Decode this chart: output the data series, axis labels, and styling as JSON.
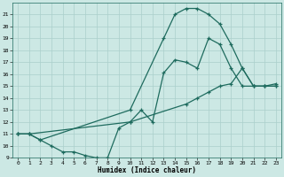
{
  "xlabel": "Humidex (Indice chaleur)",
  "bg_color": "#cce8e4",
  "line_color": "#1e6b5e",
  "grid_color": "#aacfcb",
  "xlim": [
    -0.5,
    23.5
  ],
  "ylim": [
    9,
    22
  ],
  "xticks": [
    0,
    1,
    2,
    3,
    4,
    5,
    6,
    7,
    8,
    9,
    10,
    11,
    12,
    13,
    14,
    15,
    16,
    17,
    18,
    19,
    20,
    21,
    22,
    23
  ],
  "yticks": [
    9,
    10,
    11,
    12,
    13,
    14,
    15,
    16,
    17,
    18,
    19,
    20,
    21
  ],
  "line1_x": [
    0,
    1,
    2,
    3,
    4,
    5,
    6,
    7,
    8,
    9,
    10,
    11,
    12,
    13,
    14,
    15,
    16,
    17,
    18,
    19,
    20,
    21,
    22,
    23
  ],
  "line1_y": [
    11,
    11,
    10.5,
    10,
    9.5,
    9.5,
    9.2,
    9,
    9,
    11.5,
    12,
    13,
    12,
    16.1,
    17.2,
    17,
    16.5,
    19,
    18.5,
    16.5,
    15,
    15,
    15,
    15
  ],
  "line2_x": [
    0,
    1,
    2,
    10,
    13,
    14,
    15,
    16,
    17,
    18,
    19,
    20,
    21,
    22,
    23
  ],
  "line2_y": [
    11,
    11,
    10.5,
    13,
    19,
    21,
    21.5,
    21.5,
    21,
    20.2,
    18.5,
    16.5,
    15,
    15,
    15
  ],
  "line3_x": [
    0,
    1,
    10,
    15,
    16,
    17,
    18,
    19,
    20,
    21,
    22,
    23
  ],
  "line3_y": [
    11,
    11,
    12,
    13.5,
    14,
    14.5,
    15,
    15.2,
    16.5,
    15,
    15,
    15.2
  ]
}
